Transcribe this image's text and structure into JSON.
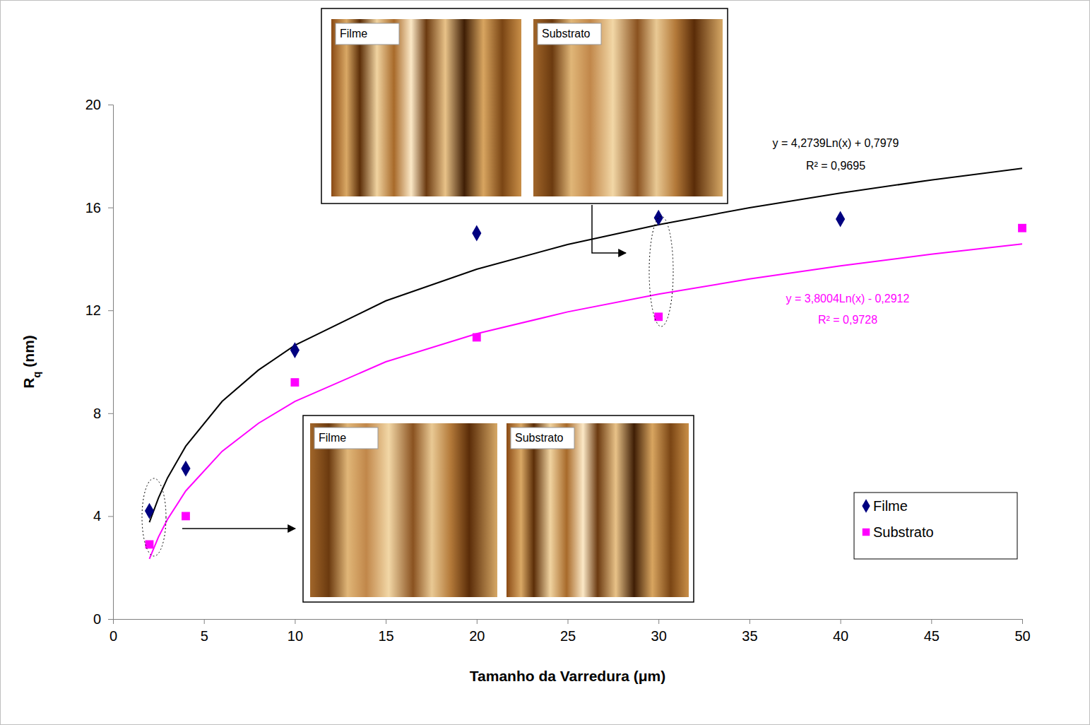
{
  "chart_data": {
    "type": "scatter",
    "x_label": "Tamanho da Varredura (μm)",
    "y_label": "Rq (nm)",
    "xlim": [
      0,
      50
    ],
    "xticks": [
      0,
      5,
      10,
      15,
      20,
      25,
      30,
      35,
      40,
      45,
      50
    ],
    "ylim": [
      0,
      20
    ],
    "yticks": [
      0,
      4,
      8,
      12,
      16,
      20
    ],
    "grid": false,
    "legend": "lower right",
    "series": [
      {
        "name": "Filme",
        "type": "scatter",
        "marker": "diamond",
        "color": "#000080",
        "x": [
          2,
          4,
          10,
          20,
          30,
          40
        ],
        "values": [
          4.2,
          5.85,
          10.45,
          15.0,
          15.6,
          15.55
        ]
      },
      {
        "name": "Substrato",
        "type": "scatter",
        "marker": "square",
        "color": "#FF00FF",
        "x": [
          2,
          4,
          10,
          20,
          30,
          50
        ],
        "values": [
          2.9,
          4.0,
          9.2,
          10.95,
          11.75,
          15.2
        ]
      },
      {
        "type": "line",
        "line_style": "solid",
        "color": "#000000",
        "x": [
          2,
          2.5,
          3,
          4,
          6,
          8,
          10,
          15,
          20,
          25,
          30,
          35,
          40,
          45,
          50
        ],
        "values": [
          3.76,
          4.71,
          5.49,
          6.72,
          8.46,
          9.68,
          10.64,
          12.37,
          13.6,
          14.56,
          15.33,
          15.99,
          16.56,
          17.07,
          17.52
        ]
      },
      {
        "type": "line",
        "line_style": "solid",
        "color": "#FF00FF",
        "x": [
          2,
          2.5,
          3,
          4,
          6,
          8,
          10,
          15,
          20,
          25,
          30,
          35,
          40,
          45,
          50
        ],
        "values": [
          2.34,
          3.19,
          3.88,
          4.98,
          6.52,
          7.61,
          8.46,
          10.0,
          11.09,
          11.94,
          12.63,
          13.22,
          13.73,
          14.18,
          14.58
        ]
      }
    ],
    "annotations": [
      "y = 4,2739Ln(x) + 0,7979",
      "R² = 0,9695",
      "y = 3,8004Ln(x) - 0,2912",
      "R² = 0,9728",
      "Filme",
      "Substrato",
      "Filme",
      "Substrato"
    ]
  }
}
